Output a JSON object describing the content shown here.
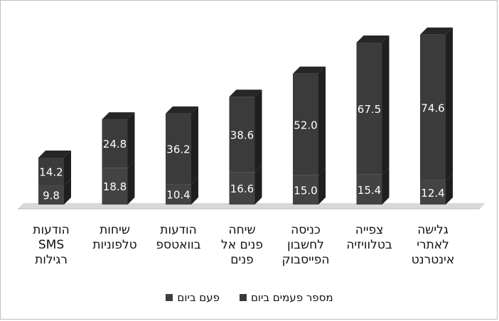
{
  "chart_data": {
    "type": "bar",
    "stacked": true,
    "three_d": true,
    "title": "",
    "xlabel": "",
    "ylabel": "",
    "ylim": [
      0,
      100
    ],
    "grid": false,
    "legend_position": "bottom",
    "categories": [
      "גלישה לאתרי אינטרנט",
      "צפייה בטלוויזיה",
      "כניסה לחשבון הפייסבוק",
      "שיחה פנים אל פנים",
      "הודעות בוואטספ",
      "שיחות טלפוניות",
      "הודעות SMS רגילות"
    ],
    "category_lines": [
      [
        "גלישה",
        "לאתרי",
        "אינטרנט"
      ],
      [
        "צפייה",
        "בטלוויזיה"
      ],
      [
        "כניסה",
        "לחשבון",
        "הפייסבוק"
      ],
      [
        "שיחה",
        "פנים אל",
        "פנים"
      ],
      [
        "הודעות",
        "בוואטספ"
      ],
      [
        "שיחות",
        "טלפוניות"
      ],
      [
        "הודעות",
        "SMS",
        "רגילות"
      ]
    ],
    "series": [
      {
        "name": "פעם ביום",
        "color": "#404040",
        "values": [
          12.4,
          15.4,
          15.0,
          16.6,
          10.4,
          18.8,
          9.8
        ]
      },
      {
        "name": "מספר פעמים ביום",
        "color": "#3a3a3a",
        "values": [
          74.6,
          67.5,
          52.0,
          38.6,
          36.2,
          24.8,
          14.2
        ]
      }
    ]
  }
}
